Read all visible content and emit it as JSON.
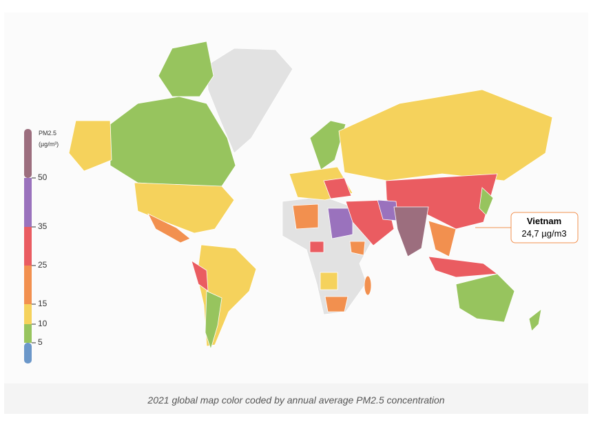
{
  "map": {
    "caption": "2021 global map color coded by annual average PM2.5 concentration",
    "legend": {
      "title_line1": "PM2.5",
      "title_line2": "(µg/m³)",
      "ticks": [
        5,
        10,
        15,
        25,
        35,
        50
      ],
      "colors": [
        "#6b97c9",
        "#97c45e",
        "#f5d25c",
        "#f2904f",
        "#ea5c61",
        "#9a72bd",
        "#9c6e7e"
      ]
    },
    "callout": {
      "country": "Vietnam",
      "value_text": "24,7 µg/m3"
    }
  }
}
